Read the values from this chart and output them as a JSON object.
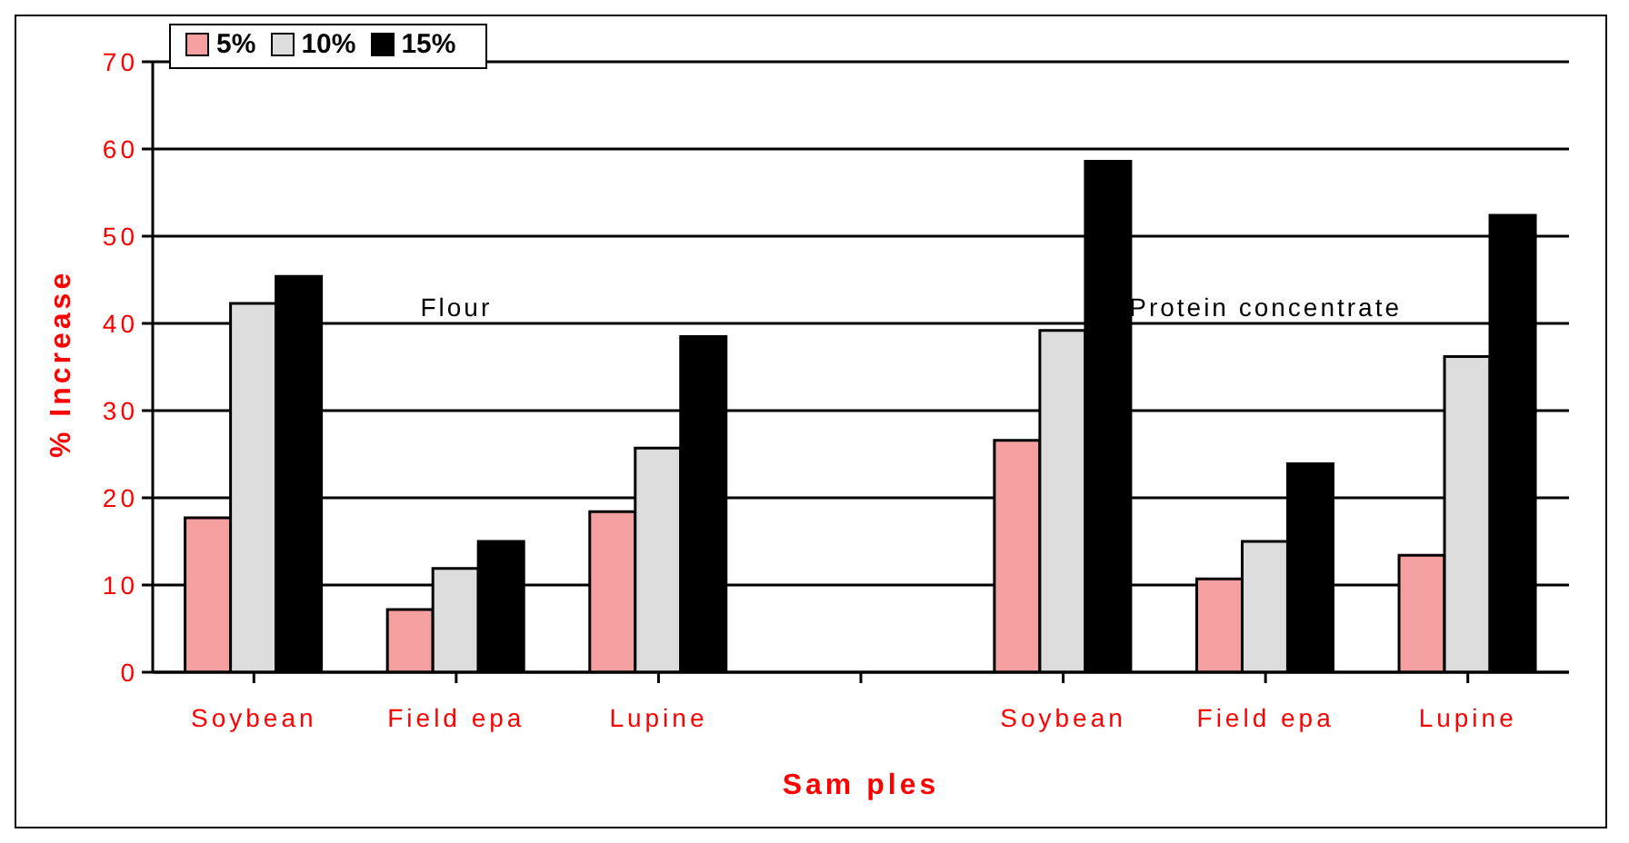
{
  "chart_data": {
    "type": "bar",
    "xlabel": "Sam ples",
    "ylabel": "% Increase",
    "categories": [
      "Soybean",
      "Field epa",
      "Lupine",
      null,
      "Soybean",
      "Field epa",
      "Lupine"
    ],
    "series": [
      {
        "name": "5%",
        "color": "#f4a0a0",
        "values": [
          17.7,
          7.2,
          18.4,
          null,
          26.6,
          10.7,
          13.4
        ]
      },
      {
        "name": "10%",
        "color": "#dcdcdc",
        "values": [
          42.3,
          11.9,
          25.7,
          null,
          39.2,
          15.0,
          36.2
        ]
      },
      {
        "name": "15%",
        "color": "#000000",
        "values": [
          45.4,
          15.0,
          38.5,
          null,
          58.6,
          23.9,
          52.4
        ]
      }
    ],
    "ylim": [
      0,
      70
    ],
    "yticks": [
      0,
      10,
      20,
      30,
      40,
      50,
      60,
      70
    ],
    "grid": "y",
    "legend": "top left",
    "annotations": [
      "Flour",
      "Protein concentrate"
    ]
  }
}
